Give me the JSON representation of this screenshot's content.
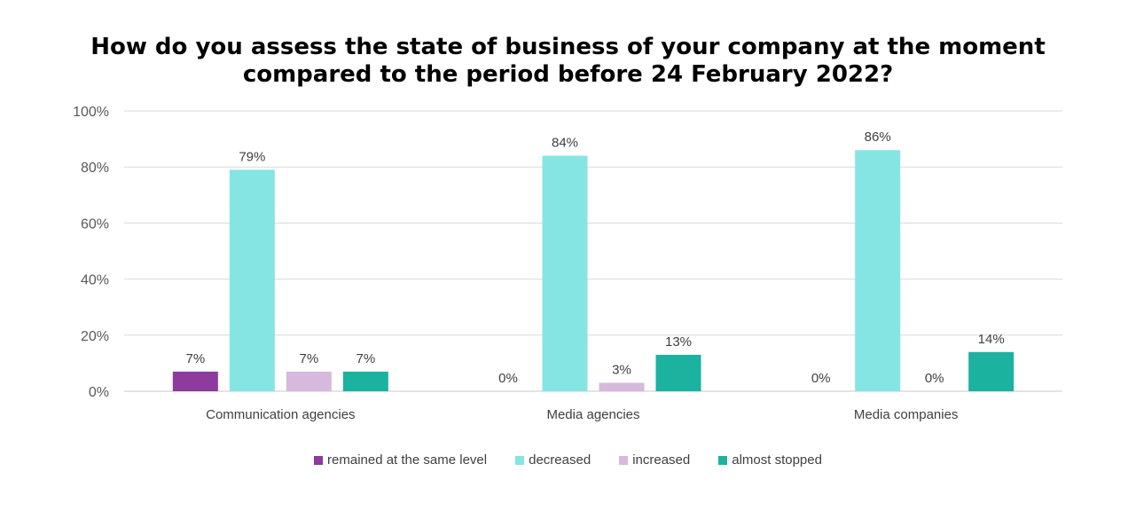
{
  "chart_data": {
    "type": "bar",
    "title_lines": [
      "How do you assess the state of business of your company at the moment",
      "compared to the period before 24 February 2022?"
    ],
    "categories": [
      "Communication agencies",
      "Media agencies",
      "Media companies"
    ],
    "series": [
      {
        "name": "remained at the same level",
        "color": "#8E3A9E",
        "values": [
          7,
          0,
          0
        ]
      },
      {
        "name": "decreased",
        "color": "#85E5E3",
        "values": [
          79,
          84,
          86
        ]
      },
      {
        "name": "increased",
        "color": "#D6B9DD",
        "values": [
          7,
          3,
          0
        ]
      },
      {
        "name": "almost stopped",
        "color": "#1BB29F",
        "values": [
          7,
          13,
          14
        ]
      }
    ],
    "ylim": [
      0,
      100
    ],
    "yticks": [
      0,
      20,
      40,
      60,
      80,
      100
    ],
    "tick_suffix": "%",
    "value_suffix": "%",
    "grid": true,
    "legend_position": "bottom"
  }
}
